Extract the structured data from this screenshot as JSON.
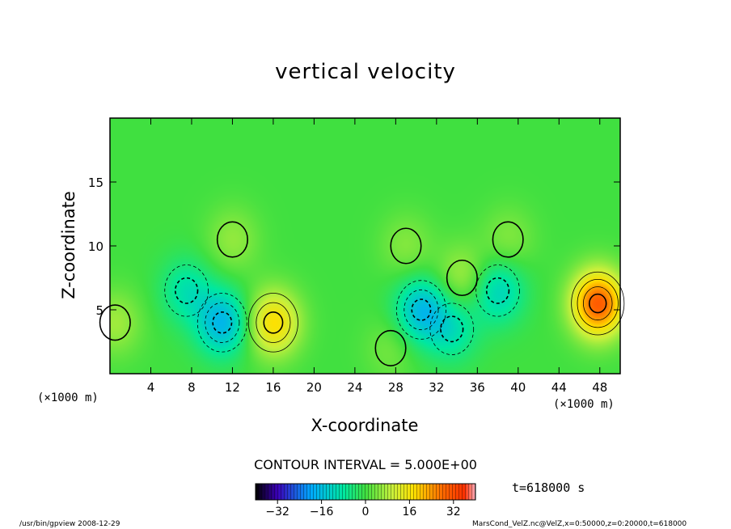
{
  "chart_data": {
    "type": "heatmap",
    "title": "vertical velocity",
    "xlabel": "X-coordinate",
    "ylabel": "Z-coordinate",
    "x_unit_left": "(×1000 m)",
    "x_unit_right": "(×1000 m)",
    "xlim": [
      0,
      50
    ],
    "ylim": [
      0,
      20
    ],
    "x_ticks": [
      "4",
      "8",
      "12",
      "16",
      "20",
      "24",
      "28",
      "32",
      "36",
      "40",
      "44",
      "48"
    ],
    "y_ticks": [
      "5",
      "10",
      "15"
    ],
    "contour_interval_text": "CONTOUR INTERVAL = 5.000E+00",
    "time_text": "t=618000 s",
    "colorbar": {
      "min": -40,
      "max": 40,
      "ticks": [
        "−32",
        "−16",
        "0",
        "16",
        "32"
      ]
    },
    "features": [
      {
        "x": 0.5,
        "z": 4,
        "value": 7
      },
      {
        "x": 7.5,
        "z": 6.5,
        "value": -9
      },
      {
        "x": 11,
        "z": 4,
        "value": -17
      },
      {
        "x": 16,
        "z": 4,
        "value": 18
      },
      {
        "x": 12,
        "z": 10.5,
        "value": 6
      },
      {
        "x": 30.5,
        "z": 5,
        "value": -16
      },
      {
        "x": 33.5,
        "z": 3.5,
        "value": -9
      },
      {
        "x": 38,
        "z": 6.5,
        "value": -12
      },
      {
        "x": 29,
        "z": 10,
        "value": 5
      },
      {
        "x": 34.5,
        "z": 7.5,
        "value": 8
      },
      {
        "x": 39,
        "z": 10.5,
        "value": 5
      },
      {
        "x": 47.8,
        "z": 5.5,
        "value": 30
      },
      {
        "x": 27.5,
        "z": 2,
        "value": 4
      }
    ]
  },
  "footer": {
    "left": "/usr/bin/gpview   2008-12-29",
    "right": "MarsCond_VelZ.nc@VelZ,x=0:50000,z=0:20000,t=618000"
  }
}
